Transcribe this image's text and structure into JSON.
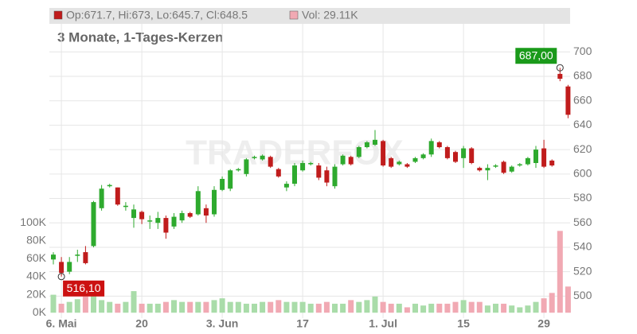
{
  "chart_data": {
    "type": "candlestick",
    "subtitle": "3 Monate, 1-Tages-Kerzen",
    "header": {
      "ohlc": "Op:671.7, Hi:673, Lo:645.7, Cl:648.5",
      "volume": "Vol: 29.11K"
    },
    "watermark": "TRADERFOX",
    "categories": [
      null,
      "6. Mai",
      null,
      null,
      null,
      null,
      null,
      null,
      null,
      null,
      null,
      "20",
      null,
      null,
      null,
      null,
      null,
      null,
      null,
      null,
      null,
      "3. Jun",
      null,
      null,
      null,
      null,
      null,
      null,
      null,
      null,
      null,
      "17",
      null,
      null,
      null,
      null,
      null,
      null,
      null,
      null,
      null,
      "1. Jul",
      null,
      null,
      null,
      null,
      null,
      null,
      null,
      null,
      null,
      "15",
      null,
      null,
      null,
      null,
      null,
      null,
      null,
      null,
      null,
      "29",
      null,
      null,
      null
    ],
    "open": [
      530,
      528,
      520,
      533,
      536,
      541,
      572,
      590,
      589,
      573,
      564,
      569,
      562,
      560,
      564,
      557,
      562,
      568,
      567,
      572,
      567,
      587,
      588,
      603,
      600,
      613,
      612,
      614,
      604,
      589,
      592,
      603,
      608,
      607,
      603,
      590,
      608,
      614,
      614,
      622,
      624,
      627,
      613,
      608,
      608,
      610,
      613,
      616,
      626,
      622,
      618,
      613,
      621,
      605,
      603,
      606,
      610,
      602,
      607,
      608,
      609,
      621,
      611,
      682,
      671.7
    ],
    "high": [
      536,
      532,
      532,
      538,
      541,
      578,
      591,
      592,
      589,
      577,
      575,
      570,
      566,
      569,
      566,
      568,
      570,
      569,
      590,
      575,
      590,
      598,
      604,
      605,
      613,
      615,
      616,
      615,
      605,
      594,
      609,
      611,
      610,
      609,
      606,
      608,
      616,
      615,
      623,
      627,
      636,
      628,
      614,
      611,
      609,
      614,
      617,
      629,
      627,
      623,
      619,
      623,
      622,
      606,
      608,
      608,
      611,
      607,
      609,
      614,
      623,
      628,
      612,
      687,
      673
    ],
    "low": [
      526,
      516,
      518,
      528,
      526,
      540,
      570,
      589,
      574,
      570,
      556,
      559,
      555,
      555,
      547,
      555,
      560,
      564,
      566,
      560,
      565,
      586,
      586,
      602,
      598,
      612,
      611,
      605,
      597,
      586,
      590,
      602,
      607,
      595,
      590,
      588,
      607,
      607,
      613,
      621,
      623,
      606,
      605,
      607,
      605,
      609,
      612,
      614,
      621,
      612,
      609,
      605,
      608,
      602,
      595,
      605,
      600,
      601,
      606,
      607,
      605,
      605,
      606,
      676,
      645.7
    ],
    "close": [
      534,
      519,
      528,
      534,
      527,
      577,
      588,
      591,
      575,
      574,
      571,
      563,
      562,
      564,
      552,
      565,
      568,
      565,
      586,
      566,
      587,
      596,
      603,
      604,
      612,
      614,
      615,
      606,
      598,
      592,
      607,
      609,
      609,
      597,
      593,
      606,
      615,
      608,
      622,
      626,
      628,
      607,
      606,
      610,
      606,
      613,
      616,
      627,
      622,
      613,
      610,
      621,
      609,
      603,
      605,
      607,
      601,
      606,
      608,
      613,
      620,
      606,
      607,
      678,
      648.5
    ],
    "volume": [
      20,
      10,
      12,
      15,
      18,
      20,
      14,
      12,
      10,
      12,
      24,
      10,
      10,
      10,
      12,
      14,
      12,
      12,
      12,
      12,
      14,
      16,
      12,
      12,
      10,
      10,
      12,
      12,
      14,
      12,
      12,
      12,
      10,
      10,
      12,
      10,
      10,
      14,
      12,
      14,
      18,
      12,
      10,
      10,
      6,
      10,
      8,
      10,
      10,
      10,
      12,
      14,
      12,
      12,
      8,
      10,
      10,
      8,
      6,
      8,
      12,
      16,
      22,
      91,
      29.11
    ],
    "ylim": [
      482,
      736
    ],
    "yticks": [
      500,
      520,
      540,
      560,
      580,
      600,
      620,
      640,
      660,
      680,
      700
    ],
    "y2lim": [
      -6,
      339
    ],
    "y2ticks": [
      {
        "value": 0,
        "label": "0K"
      },
      {
        "value": 20,
        "label": "20K"
      },
      {
        "value": 40,
        "label": "40K"
      },
      {
        "value": 60,
        "label": "60K"
      },
      {
        "value": 80,
        "label": "80K"
      },
      {
        "value": 100,
        "label": "100K"
      }
    ],
    "annotations": [
      {
        "label": "687,00",
        "value": 687,
        "index": 63,
        "color": "#1a9a1a"
      },
      {
        "label": "516,10",
        "value": 516,
        "index": 1,
        "color": "#cc1111"
      }
    ],
    "up_color": "#2eaa2e",
    "down_color": "#c01c1c",
    "vol_up_color": "#a9dca9",
    "vol_down_color": "#f1a9b3",
    "grid": true
  }
}
